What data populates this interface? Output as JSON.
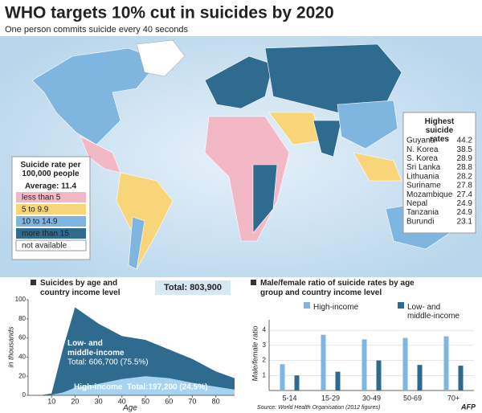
{
  "title": "WHO targets 10% cut in suicides by 2020",
  "subtitle": "One person commits suicide every 40 seconds",
  "map_legend": {
    "title": "Suicide rate per 100,000 people",
    "average": "Average: 11.4",
    "items": [
      {
        "label": "less than 5",
        "color": "#f2b8c6"
      },
      {
        "label": "5 to 9.9",
        "color": "#f9d57a"
      },
      {
        "label": "10 to 14.9",
        "color": "#7fb6df"
      },
      {
        "label": "more than 15",
        "color": "#2f6b8f"
      },
      {
        "label": "not available",
        "color": "#ffffff"
      }
    ]
  },
  "highest": {
    "title": "Highest suicide rates",
    "rows": [
      [
        "Guyana",
        "44.2"
      ],
      [
        "N. Korea",
        "38.5"
      ],
      [
        "S. Korea",
        "28.9"
      ],
      [
        "Sri Lanka",
        "28.8"
      ],
      [
        "Lithuania",
        "28.2"
      ],
      [
        "Suriname",
        "27.8"
      ],
      [
        "Mozambique",
        "27.4"
      ],
      [
        "Nepal",
        "24.9"
      ],
      [
        "Tanzania",
        "24.9"
      ],
      [
        "Burundi",
        "23.1"
      ]
    ]
  },
  "source": "Source: World Health Organisation (2012 figures)",
  "credit": "AFP",
  "chart_data": [
    {
      "type": "area",
      "title": "Suicides by age and country income level",
      "total": "Total: 803,900",
      "ylabel": "in thousands",
      "xlabel": "Age",
      "x": [
        5,
        10,
        15,
        20,
        30,
        40,
        50,
        60,
        70,
        80,
        88
      ],
      "series": [
        {
          "name": "High-income",
          "color": "#a6d4f0",
          "values": [
            0,
            0.5,
            3,
            8,
            12,
            17,
            20,
            18,
            13,
            9,
            6
          ],
          "annotation": "Total:197,200 (24.5%)"
        },
        {
          "name": "Low- and middle-income",
          "color": "#2f6b8f",
          "values": [
            0,
            1.5,
            47,
            84,
            63,
            45,
            38,
            30,
            25,
            16,
            12
          ],
          "annotation": "Total: 606,700 (75.5%)"
        }
      ],
      "xlim": [
        0,
        88
      ],
      "xticks": [
        10,
        20,
        30,
        40,
        50,
        60,
        70,
        80
      ],
      "ylim": [
        0,
        100
      ],
      "yticks": [
        0,
        20,
        40,
        60,
        80,
        100
      ]
    },
    {
      "type": "bar",
      "title": "Male/female ratio of suicide rates by age group and country income level",
      "ylabel": "Male/female ratio",
      "categories": [
        "5-14",
        "15-29",
        "30-49",
        "50-69",
        "70+"
      ],
      "series": [
        {
          "name": "High-income",
          "color": "#7fb6df",
          "values": [
            1.75,
            3.7,
            3.4,
            3.5,
            3.6
          ]
        },
        {
          "name": "Low- and middle-income",
          "color": "#2e6a8c",
          "values": [
            1.0,
            1.25,
            2.0,
            1.7,
            1.65
          ]
        }
      ],
      "ylim": [
        0,
        4.7
      ],
      "yticks": [
        1,
        2,
        3,
        4
      ],
      "grid": true
    }
  ]
}
